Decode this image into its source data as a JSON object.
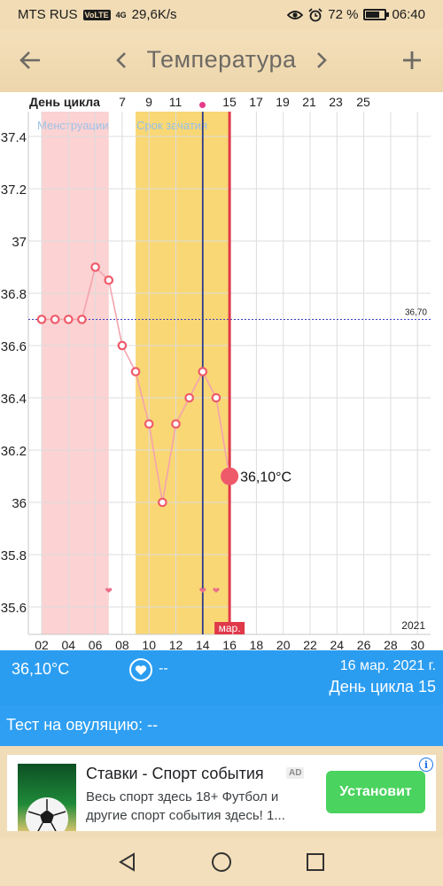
{
  "status_bar": {
    "carrier": "MTS RUS",
    "volte": "VoLTE",
    "network": "4G",
    "speed": "29,6K/s",
    "battery": "72 %",
    "battery_level": 0.72,
    "time": "06:40"
  },
  "app_bar": {
    "title": "Температура",
    "icons": [
      "back-arrow-icon",
      "chevron-left-icon",
      "chevron-right-icon",
      "plus-icon"
    ]
  },
  "cycle_day_header": {
    "label": "День цикла",
    "ticks": [
      "7",
      "9",
      "11",
      "15",
      "17",
      "19",
      "21",
      "23",
      "25"
    ]
  },
  "chart_data": {
    "type": "line",
    "ylim": [
      35.5,
      37.5
    ],
    "y_ticks": [
      "37.4",
      "37.2",
      "37",
      "36.8",
      "36.6",
      "36.4",
      "36.2",
      "36",
      "35.8",
      "35.6"
    ],
    "x_tick_labels": [
      "02",
      "04",
      "06",
      "08",
      "10",
      "12",
      "14",
      "16",
      "18",
      "20",
      "22",
      "24",
      "26",
      "28",
      "30"
    ],
    "x_unit": "day of March",
    "xlim": [
      1,
      31
    ],
    "series": [
      {
        "x": [
          2,
          3,
          4,
          5,
          6,
          7,
          8,
          9,
          10,
          11,
          12,
          13,
          14,
          15,
          16
        ],
        "y": [
          36.7,
          36.7,
          36.7,
          36.7,
          36.9,
          36.85,
          36.6,
          36.5,
          36.3,
          36.0,
          36.3,
          36.4,
          36.5,
          36.4,
          36.1
        ]
      }
    ],
    "cover_line": {
      "value": 36.7,
      "label": "36,70"
    },
    "shaded_regions": [
      {
        "label": "Менструации",
        "x_start": 2,
        "x_end": 7,
        "color": "#fcd2d2"
      },
      {
        "label": "Срок зачатия",
        "x_start": 9,
        "x_end": 16,
        "color": "#f9d775"
      }
    ],
    "heart_markers_x": [
      7,
      14,
      15
    ],
    "vertical_markers": [
      {
        "x": 14,
        "color": "#2e3a8c"
      },
      {
        "x": 16,
        "color": "#e0394a"
      }
    ],
    "current_point": {
      "x": 16,
      "y": 36.1,
      "label": "36,10°C"
    },
    "month_label": "мар.",
    "year_label": "2021",
    "colors": {
      "line": "#f4a3ad",
      "point": "#ef5a6a",
      "cover_line": "#3b3bbf"
    }
  },
  "info_bar": {
    "temperature": "36,10°C",
    "heart_value": "--",
    "date": "16 мар. 2021 г.",
    "cycle_day": "День цикла 15"
  },
  "ovulation": {
    "label": "Тест на овуляцию:",
    "value": "--"
  },
  "ad": {
    "title": "Ставки - Спорт события",
    "badge": "AD",
    "body": "Весь спорт здесь 18+ Футбол и другие спорт события здесь! 1...",
    "button": "Установит"
  },
  "colors": {
    "accent_blue": "#2b9df1",
    "app_bar_bg": "#f0dbb3",
    "install_green": "#4ad35e"
  }
}
